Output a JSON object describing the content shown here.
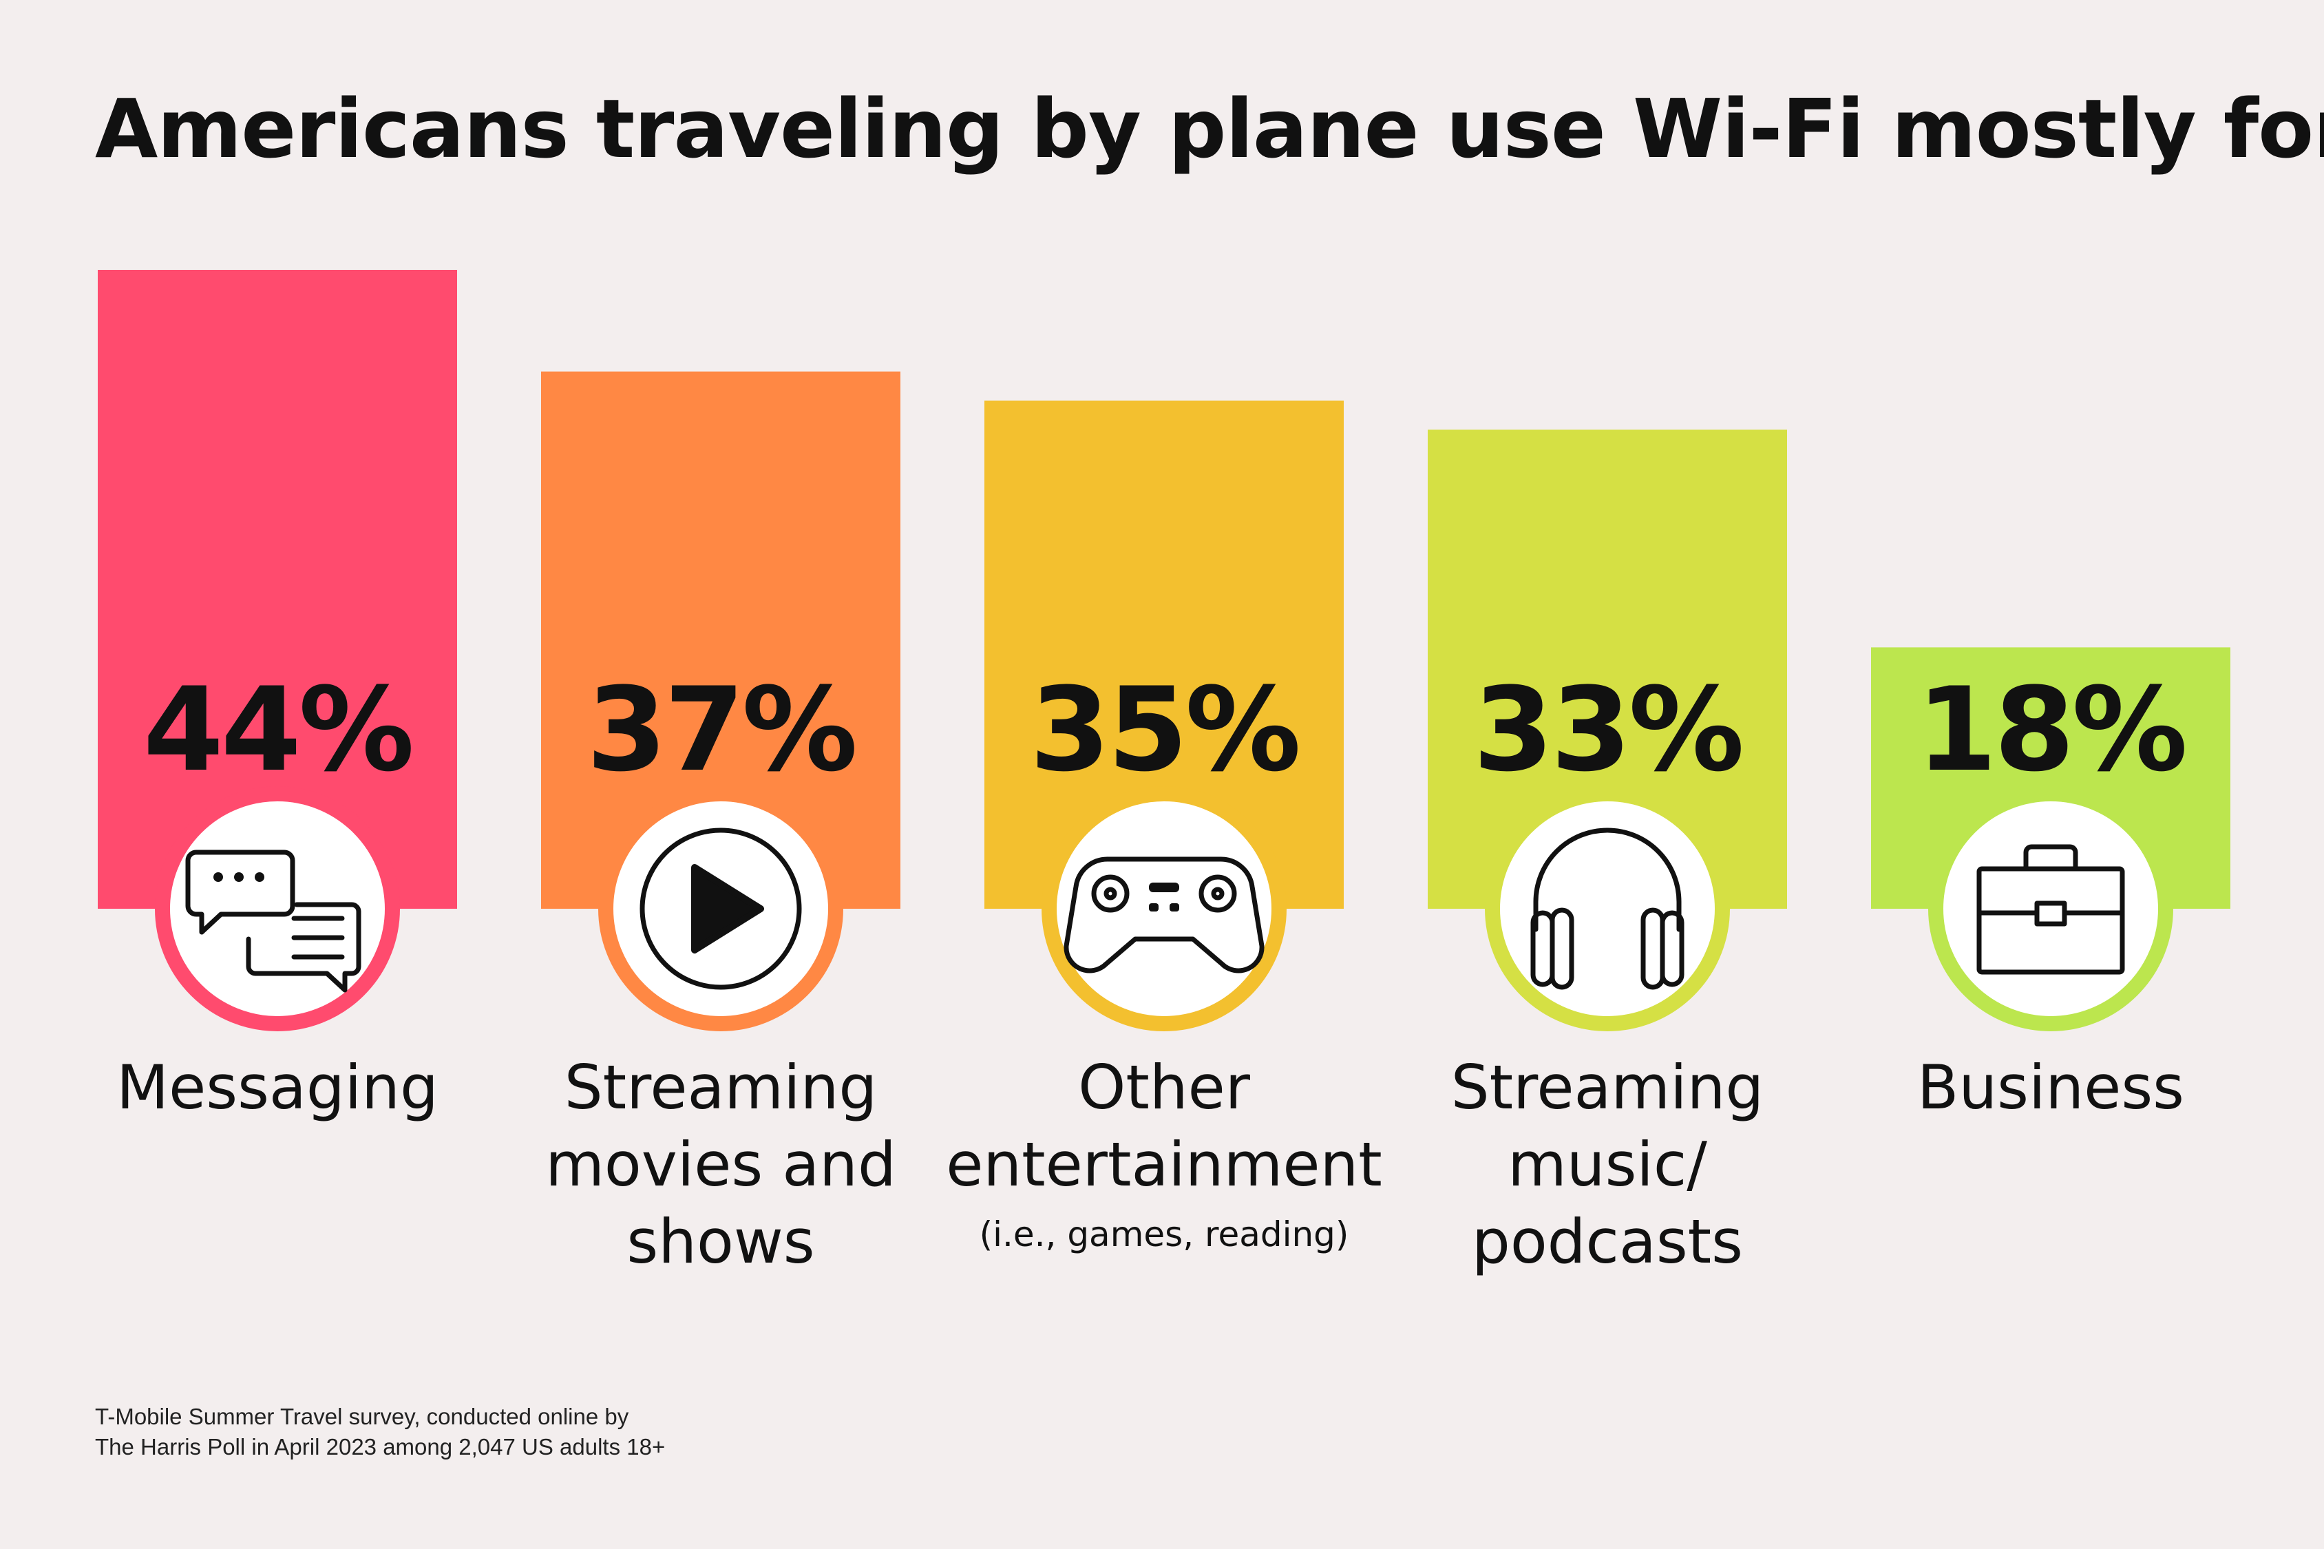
{
  "title": "Americans traveling by plane use Wi-Fi mostly for...",
  "source_lines": [
    "T-Mobile Summer Travel survey, conducted online by",
    "The Harris Poll in April 2023 among 2,047 US adults 18+"
  ],
  "chart_data": {
    "type": "bar",
    "categories": [
      "Messaging",
      "Streaming movies and shows",
      "Other entertainment",
      "Streaming music/ podcasts",
      "Business"
    ],
    "values": [
      44,
      37,
      35,
      33,
      18
    ],
    "value_labels": [
      "44%",
      "37%",
      "35%",
      "33%",
      "18%"
    ],
    "label_lines": [
      [
        "Messaging"
      ],
      [
        "Streaming",
        "movies and",
        "shows"
      ],
      [
        "Other",
        "entertainment"
      ],
      [
        "Streaming",
        "music/",
        "podcasts"
      ],
      [
        "Business"
      ]
    ],
    "sub_labels": [
      "",
      "",
      "(i.e., games, reading)",
      "",
      ""
    ],
    "icons": [
      "chat-icon",
      "play-icon",
      "gamepad-icon",
      "headphones-icon",
      "briefcase-icon"
    ],
    "colors": [
      "#ff4b6e",
      "#ff8844",
      "#f3c02f",
      "#d5e044",
      "#bce64e"
    ],
    "title": "Americans traveling by plane use Wi-Fi mostly for...",
    "grid": false,
    "legend": "none"
  }
}
